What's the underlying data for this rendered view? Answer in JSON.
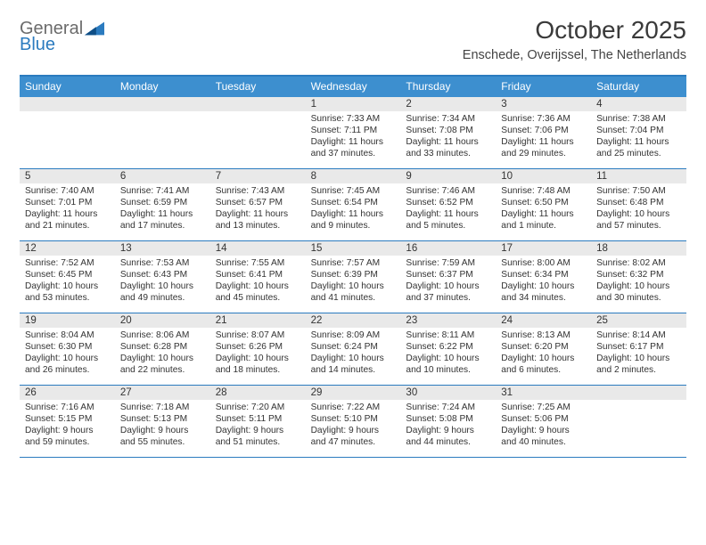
{
  "brand": {
    "word1": "General",
    "word2": "Blue"
  },
  "header": {
    "title": "October 2025",
    "subtitle": "Enschede, Overijssel, The Netherlands"
  },
  "colors": {
    "header_bg": "#3d8fcf",
    "border": "#2b7bbf",
    "daynum_bg": "#e9e9e9",
    "text": "#333333"
  },
  "day_headers": [
    "Sunday",
    "Monday",
    "Tuesday",
    "Wednesday",
    "Thursday",
    "Friday",
    "Saturday"
  ],
  "weeks": [
    [
      {
        "n": "",
        "sr": "",
        "ss": "",
        "dl": ""
      },
      {
        "n": "",
        "sr": "",
        "ss": "",
        "dl": ""
      },
      {
        "n": "",
        "sr": "",
        "ss": "",
        "dl": ""
      },
      {
        "n": "1",
        "sr": "Sunrise: 7:33 AM",
        "ss": "Sunset: 7:11 PM",
        "dl": "Daylight: 11 hours and 37 minutes."
      },
      {
        "n": "2",
        "sr": "Sunrise: 7:34 AM",
        "ss": "Sunset: 7:08 PM",
        "dl": "Daylight: 11 hours and 33 minutes."
      },
      {
        "n": "3",
        "sr": "Sunrise: 7:36 AM",
        "ss": "Sunset: 7:06 PM",
        "dl": "Daylight: 11 hours and 29 minutes."
      },
      {
        "n": "4",
        "sr": "Sunrise: 7:38 AM",
        "ss": "Sunset: 7:04 PM",
        "dl": "Daylight: 11 hours and 25 minutes."
      }
    ],
    [
      {
        "n": "5",
        "sr": "Sunrise: 7:40 AM",
        "ss": "Sunset: 7:01 PM",
        "dl": "Daylight: 11 hours and 21 minutes."
      },
      {
        "n": "6",
        "sr": "Sunrise: 7:41 AM",
        "ss": "Sunset: 6:59 PM",
        "dl": "Daylight: 11 hours and 17 minutes."
      },
      {
        "n": "7",
        "sr": "Sunrise: 7:43 AM",
        "ss": "Sunset: 6:57 PM",
        "dl": "Daylight: 11 hours and 13 minutes."
      },
      {
        "n": "8",
        "sr": "Sunrise: 7:45 AM",
        "ss": "Sunset: 6:54 PM",
        "dl": "Daylight: 11 hours and 9 minutes."
      },
      {
        "n": "9",
        "sr": "Sunrise: 7:46 AM",
        "ss": "Sunset: 6:52 PM",
        "dl": "Daylight: 11 hours and 5 minutes."
      },
      {
        "n": "10",
        "sr": "Sunrise: 7:48 AM",
        "ss": "Sunset: 6:50 PM",
        "dl": "Daylight: 11 hours and 1 minute."
      },
      {
        "n": "11",
        "sr": "Sunrise: 7:50 AM",
        "ss": "Sunset: 6:48 PM",
        "dl": "Daylight: 10 hours and 57 minutes."
      }
    ],
    [
      {
        "n": "12",
        "sr": "Sunrise: 7:52 AM",
        "ss": "Sunset: 6:45 PM",
        "dl": "Daylight: 10 hours and 53 minutes."
      },
      {
        "n": "13",
        "sr": "Sunrise: 7:53 AM",
        "ss": "Sunset: 6:43 PM",
        "dl": "Daylight: 10 hours and 49 minutes."
      },
      {
        "n": "14",
        "sr": "Sunrise: 7:55 AM",
        "ss": "Sunset: 6:41 PM",
        "dl": "Daylight: 10 hours and 45 minutes."
      },
      {
        "n": "15",
        "sr": "Sunrise: 7:57 AM",
        "ss": "Sunset: 6:39 PM",
        "dl": "Daylight: 10 hours and 41 minutes."
      },
      {
        "n": "16",
        "sr": "Sunrise: 7:59 AM",
        "ss": "Sunset: 6:37 PM",
        "dl": "Daylight: 10 hours and 37 minutes."
      },
      {
        "n": "17",
        "sr": "Sunrise: 8:00 AM",
        "ss": "Sunset: 6:34 PM",
        "dl": "Daylight: 10 hours and 34 minutes."
      },
      {
        "n": "18",
        "sr": "Sunrise: 8:02 AM",
        "ss": "Sunset: 6:32 PM",
        "dl": "Daylight: 10 hours and 30 minutes."
      }
    ],
    [
      {
        "n": "19",
        "sr": "Sunrise: 8:04 AM",
        "ss": "Sunset: 6:30 PM",
        "dl": "Daylight: 10 hours and 26 minutes."
      },
      {
        "n": "20",
        "sr": "Sunrise: 8:06 AM",
        "ss": "Sunset: 6:28 PM",
        "dl": "Daylight: 10 hours and 22 minutes."
      },
      {
        "n": "21",
        "sr": "Sunrise: 8:07 AM",
        "ss": "Sunset: 6:26 PM",
        "dl": "Daylight: 10 hours and 18 minutes."
      },
      {
        "n": "22",
        "sr": "Sunrise: 8:09 AM",
        "ss": "Sunset: 6:24 PM",
        "dl": "Daylight: 10 hours and 14 minutes."
      },
      {
        "n": "23",
        "sr": "Sunrise: 8:11 AM",
        "ss": "Sunset: 6:22 PM",
        "dl": "Daylight: 10 hours and 10 minutes."
      },
      {
        "n": "24",
        "sr": "Sunrise: 8:13 AM",
        "ss": "Sunset: 6:20 PM",
        "dl": "Daylight: 10 hours and 6 minutes."
      },
      {
        "n": "25",
        "sr": "Sunrise: 8:14 AM",
        "ss": "Sunset: 6:17 PM",
        "dl": "Daylight: 10 hours and 2 minutes."
      }
    ],
    [
      {
        "n": "26",
        "sr": "Sunrise: 7:16 AM",
        "ss": "Sunset: 5:15 PM",
        "dl": "Daylight: 9 hours and 59 minutes."
      },
      {
        "n": "27",
        "sr": "Sunrise: 7:18 AM",
        "ss": "Sunset: 5:13 PM",
        "dl": "Daylight: 9 hours and 55 minutes."
      },
      {
        "n": "28",
        "sr": "Sunrise: 7:20 AM",
        "ss": "Sunset: 5:11 PM",
        "dl": "Daylight: 9 hours and 51 minutes."
      },
      {
        "n": "29",
        "sr": "Sunrise: 7:22 AM",
        "ss": "Sunset: 5:10 PM",
        "dl": "Daylight: 9 hours and 47 minutes."
      },
      {
        "n": "30",
        "sr": "Sunrise: 7:24 AM",
        "ss": "Sunset: 5:08 PM",
        "dl": "Daylight: 9 hours and 44 minutes."
      },
      {
        "n": "31",
        "sr": "Sunrise: 7:25 AM",
        "ss": "Sunset: 5:06 PM",
        "dl": "Daylight: 9 hours and 40 minutes."
      },
      {
        "n": "",
        "sr": "",
        "ss": "",
        "dl": ""
      }
    ]
  ]
}
